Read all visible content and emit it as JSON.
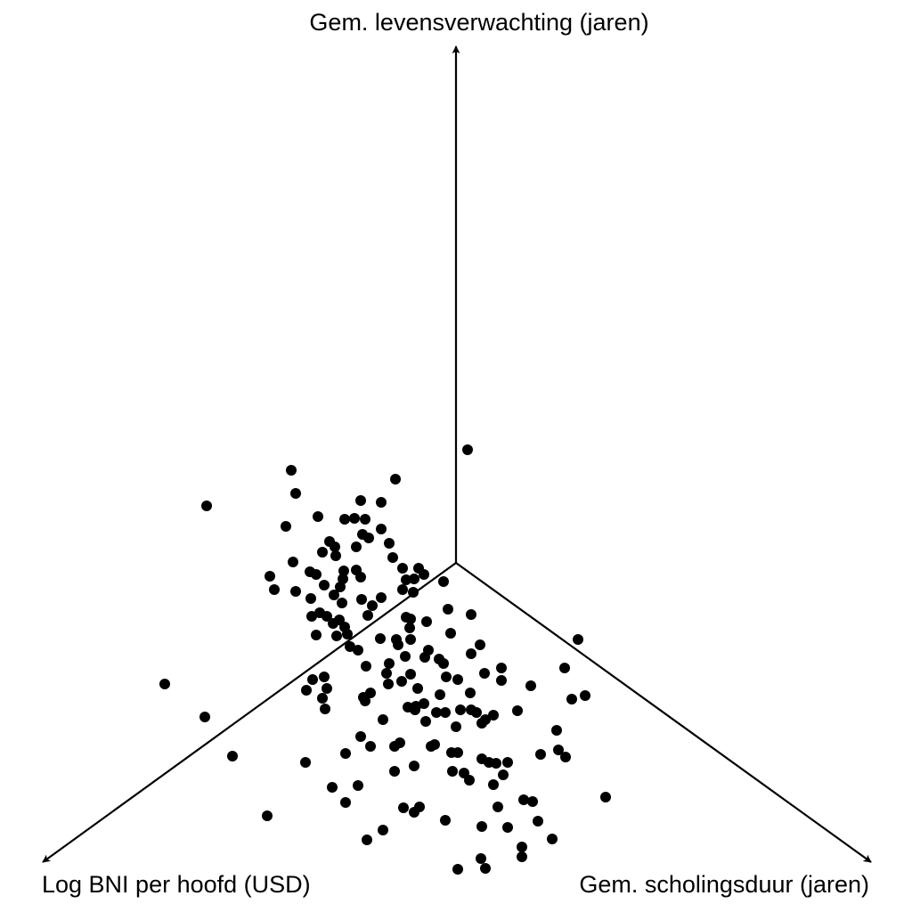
{
  "chart_data": {
    "type": "scatter",
    "axis_labels": [
      "Gem. levensverwachting (jaren)",
      "Log BNI per hoofd (USD)",
      "Gem. scholingsduur (jaren)"
    ],
    "color": "#000000",
    "xlim": [
      -512,
      512
    ],
    "ylim": [
      -392,
      632
    ],
    "x": [
      13,
      -280,
      -185,
      -180,
      -68,
      -107,
      -84,
      -155,
      -125,
      -114,
      -102,
      -191,
      -84,
      -105,
      -98,
      -142,
      -75,
      -136,
      -150,
      -112,
      -135,
      -71,
      -183,
      -164,
      -157,
      -126,
      -112,
      -60,
      -42,
      -209,
      -127,
      -107,
      -36,
      -56,
      -47,
      -148,
      -130,
      -204,
      -180,
      -137,
      -60,
      -48,
      -14,
      -163,
      -128,
      -106,
      -84,
      -94,
      -153,
      -162,
      -145,
      -131,
      -99,
      -9,
      17,
      -56,
      -51,
      -33,
      -138,
      -125,
      -52,
      -6,
      -157,
      -134,
      -122,
      -85,
      -67,
      -51,
      -119,
      -110,
      -65,
      -31,
      27,
      137,
      -57,
      -35,
      -19,
      17,
      -101,
      -75,
      -14,
      51,
      122,
      -161,
      -148,
      -78,
      -51,
      -11,
      2,
      32,
      51,
      -327,
      -168,
      -145,
      -76,
      -61,
      -43,
      84,
      145,
      130,
      -150,
      -104,
      -96,
      -18,
      16,
      -102,
      -36,
      -45,
      -147,
      -54,
      -46,
      -22,
      -12,
      5,
      17,
      23,
      42,
      69,
      -282,
      -82,
      -34,
      0,
      33,
      29,
      113,
      -107,
      -96,
      -63,
      -69,
      -28,
      -24,
      -5,
      2,
      95,
      115,
      123,
      -251,
      -124,
      -169,
      -47,
      29,
      37,
      45,
      58,
      -69,
      -4,
      9,
      53,
      15,
      42,
      -139,
      -110,
      168,
      -124,
      76,
      86,
      -59,
      -41,
      -47,
      47,
      -212,
      -12,
      92,
      29,
      58,
      -82,
      -100,
      108,
      74,
      74,
      28,
      2,
      33
    ],
    "values": [
      127,
      64,
      104,
      78,
      94,
      70,
      68,
      52,
      49,
      50,
      49,
      41,
      38,
      32,
      28,
      24,
      22,
      18,
      12,
      18,
      8,
      6,
      1,
      -10,
      -13,
      -9,
      -8,
      -6,
      -6,
      -15,
      -18,
      -16,
      -13,
      -19,
      -18,
      -25,
      -27,
      -30,
      -32,
      -36,
      -30,
      -33,
      -21,
      -40,
      -45,
      -41,
      -39,
      -48,
      -56,
      -60,
      -60,
      -64,
      -59,
      -52,
      -58,
      -61,
      -63,
      -66,
      -68,
      -72,
      -73,
      -79,
      -81,
      -82,
      -80,
      -85,
      -86,
      -86,
      -94,
      -98,
      -92,
      -98,
      -92,
      -86,
      -105,
      -106,
      -108,
      -102,
      -116,
      -113,
      -113,
      -118,
      -118,
      -131,
      -128,
      -124,
      -125,
      -128,
      -131,
      -124,
      -132,
      -136,
      -143,
      -141,
      -136,
      -133,
      -141,
      -138,
      -149,
      -153,
      -152,
      -151,
      -146,
      -148,
      -146,
      -155,
      -158,
      -161,
      -164,
      -162,
      -165,
      -168,
      -168,
      -165,
      -165,
      -168,
      -171,
      -166,
      -173,
      -176,
      -178,
      -184,
      -176,
      -180,
      -188,
      -195,
      -206,
      -202,
      -206,
      -206,
      -204,
      -213,
      -213,
      -215,
      -210,
      -218,
      -217,
      -214,
      -224,
      -228,
      -220,
      -224,
      -225,
      -224,
      -234,
      -234,
      -236,
      -238,
      -244,
      -249,
      -252,
      -250,
      -263,
      -269,
      -266,
      -268,
      -275,
      -274,
      -280,
      -274,
      -284,
      -289,
      -290,
      -296,
      -297,
      -300,
      -311,
      -310,
      -319,
      -330,
      -332,
      -344,
      -343
    ]
  }
}
